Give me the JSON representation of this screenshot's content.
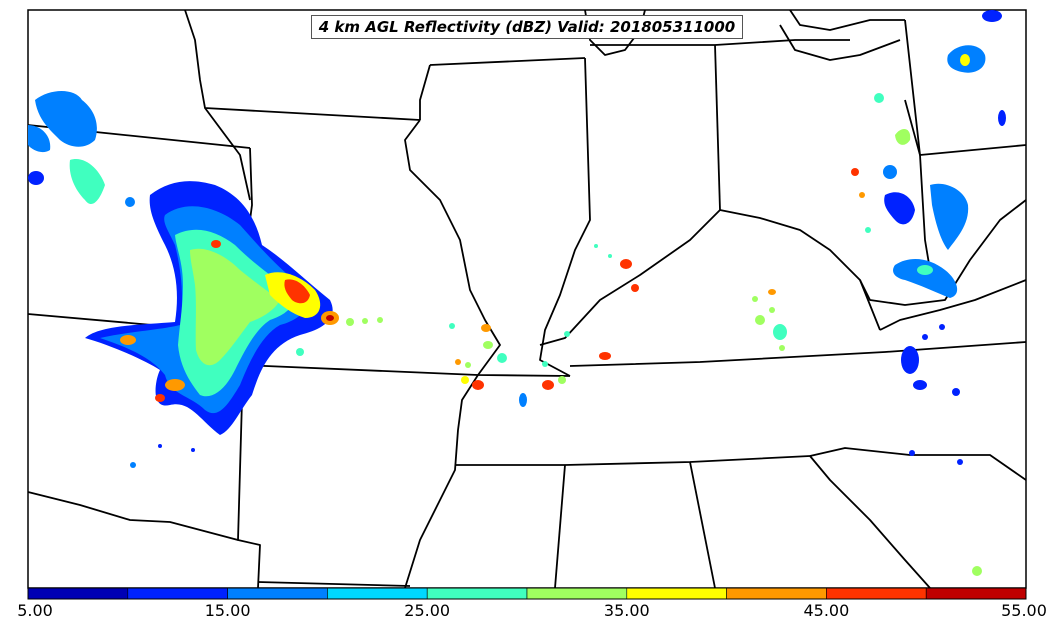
{
  "title": "4 km AGL Reflectivity (dBZ) Valid: 201805311000",
  "colorbar": {
    "colors": [
      "#0000b4",
      "#0022ff",
      "#0080ff",
      "#00d8ff",
      "#40ffbf",
      "#a0ff60",
      "#ffff00",
      "#ff9900",
      "#ff3300",
      "#c00000"
    ],
    "labels": [
      "5.00",
      "15.00",
      "25.00",
      "35.00",
      "45.00",
      "55.00"
    ],
    "min": 5,
    "max": 55
  },
  "colors": {
    "boundary": "#000000",
    "background": "#ffffff"
  }
}
